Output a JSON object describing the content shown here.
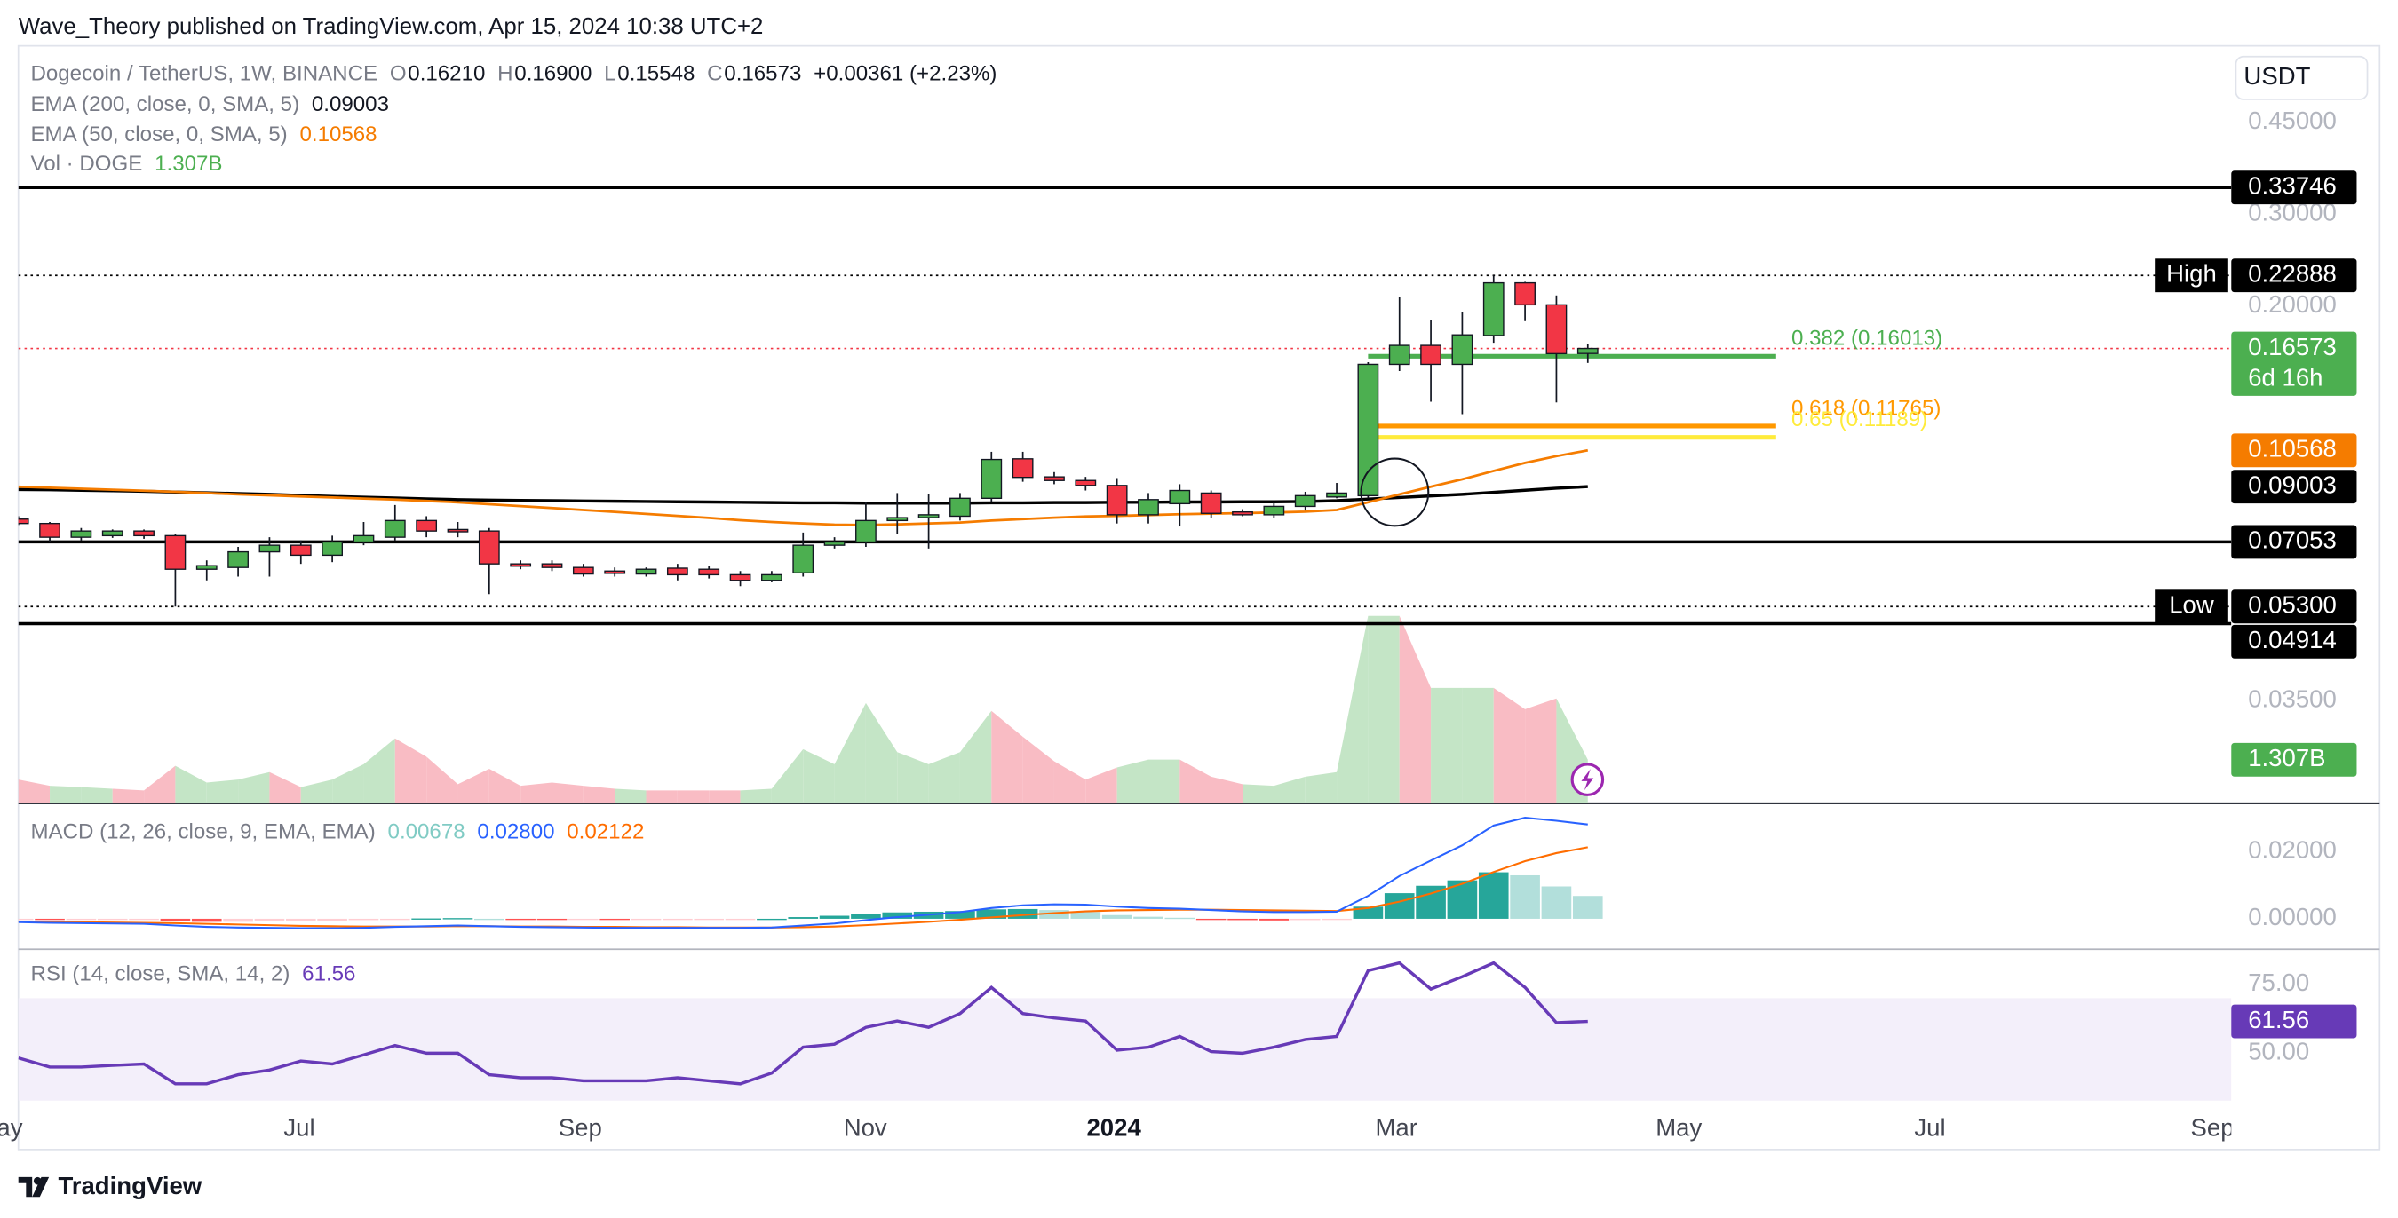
{
  "header": {
    "published": "Wave_Theory published on TradingView.com, Apr 15, 2024 10:38 UTC+2",
    "brand": "TradingView"
  },
  "chart_data": {
    "type": "candlestick",
    "title": "Dogecoin / TetherUS, 1W, BINANCE",
    "ohlc_legend": [
      {
        "key": "O",
        "value": "0.16210"
      },
      {
        "key": "H",
        "value": "0.16900"
      },
      {
        "key": "L",
        "value": "0.15548"
      },
      {
        "key": "C",
        "value": "0.16573"
      }
    ],
    "change": "+0.00361 (+2.23%)",
    "currency": "USDT",
    "categories": [
      null,
      null,
      null,
      null,
      null,
      null,
      null,
      null,
      null,
      null,
      null,
      null,
      null,
      null,
      null,
      null,
      null,
      null,
      null,
      null,
      null,
      null,
      null,
      null,
      null,
      null,
      null,
      null,
      null,
      null,
      null,
      null,
      null,
      null,
      null,
      null,
      null,
      null,
      null,
      null,
      null,
      null,
      null,
      null,
      null,
      null,
      null,
      null,
      null,
      null,
      null
    ],
    "open": [
      0.078,
      0.0765,
      0.072,
      0.0725,
      0.074,
      0.0725,
      0.0625,
      0.063,
      0.0675,
      0.0695,
      0.0665,
      0.0705,
      0.072,
      0.0775,
      0.0745,
      0.074,
      0.064,
      0.064,
      0.063,
      0.062,
      0.0612,
      0.0628,
      0.0625,
      0.061,
      0.0595,
      0.0615,
      0.0695,
      0.0705,
      0.0775,
      0.0785,
      0.079,
      0.0855,
      0.1018,
      0.094,
      0.0925,
      0.0905,
      0.0795,
      0.0835,
      0.0875,
      0.0805,
      0.0795,
      0.0825,
      0.086,
      0.0865,
      0.1545,
      0.168,
      0.1545,
      0.1755,
      0.2215,
      0.201,
      0.1621
    ],
    "high": [
      0.079,
      0.077,
      0.075,
      0.0745,
      0.0745,
      0.073,
      0.065,
      0.069,
      0.072,
      0.071,
      0.0725,
      0.077,
      0.083,
      0.079,
      0.077,
      0.075,
      0.065,
      0.065,
      0.064,
      0.063,
      0.063,
      0.064,
      0.0635,
      0.062,
      0.062,
      0.0735,
      0.072,
      0.084,
      0.0875,
      0.087,
      0.0875,
      0.105,
      0.105,
      0.096,
      0.094,
      0.0935,
      0.0875,
      0.091,
      0.0885,
      0.0815,
      0.084,
      0.088,
      0.0915,
      0.156,
      0.208,
      0.188,
      0.195,
      0.22888,
      0.2225,
      0.2095,
      0.169
    ],
    "low": [
      0.076,
      0.0705,
      0.071,
      0.0718,
      0.0715,
      0.053,
      0.0595,
      0.0605,
      0.0605,
      0.064,
      0.0645,
      0.0695,
      0.071,
      0.072,
      0.072,
      0.056,
      0.0625,
      0.062,
      0.0605,
      0.0605,
      0.0605,
      0.0595,
      0.06,
      0.058,
      0.059,
      0.0605,
      0.0685,
      0.069,
      0.073,
      0.0685,
      0.0775,
      0.084,
      0.092,
      0.091,
      0.0885,
      0.0765,
      0.0765,
      0.0755,
      0.0785,
      0.079,
      0.0785,
      0.081,
      0.0855,
      0.0855,
      0.15,
      0.131,
      0.124,
      0.17,
      0.187,
      0.1306,
      0.15548
    ],
    "close": [
      0.0765,
      0.072,
      0.074,
      0.074,
      0.0725,
      0.0625,
      0.0635,
      0.0675,
      0.0695,
      0.0665,
      0.0705,
      0.0725,
      0.0775,
      0.074,
      0.074,
      0.064,
      0.0635,
      0.063,
      0.0612,
      0.0615,
      0.0625,
      0.061,
      0.061,
      0.0595,
      0.061,
      0.0695,
      0.0705,
      0.0775,
      0.0785,
      0.0795,
      0.0855,
      0.1015,
      0.0938,
      0.0925,
      0.0905,
      0.0795,
      0.085,
      0.0885,
      0.08,
      0.0795,
      0.0825,
      0.0865,
      0.0875,
      0.1545,
      0.168,
      0.1545,
      0.176,
      0.2215,
      0.201,
      0.162,
      0.16573
    ],
    "up_color": "#4caf50",
    "down_color": "#f23645",
    "wick_color": "#131722",
    "log_scale": true,
    "grid": false,
    "ylim": [
      0.0223,
      0.631
    ],
    "yticks": [
      {
        "value": 0.45,
        "label": "0.45000"
      },
      {
        "value": 0.3,
        "label": "0.30000"
      },
      {
        "value": 0.2,
        "label": "0.20000"
      },
      {
        "value": 0.035,
        "label": "0.03500"
      }
    ],
    "xlim": [
      0,
      70.5
    ],
    "xticks": [
      {
        "value": -0.6,
        "label": "May"
      },
      {
        "value": 8.95,
        "label": "Jul"
      },
      {
        "value": 17.9,
        "label": "Sep"
      },
      {
        "value": 26.98,
        "label": "Nov"
      },
      {
        "value": 34.9,
        "label": "2024"
      },
      {
        "value": 43.9,
        "label": "Mar"
      },
      {
        "value": 52.9,
        "label": "May"
      },
      {
        "value": 60.9,
        "label": "Jul"
      },
      {
        "value": 69.9,
        "label": "Sep"
      }
    ],
    "overlays": [
      {
        "name": "EMA (200, close, 0, SMA, 5)",
        "legend_value": "0.09003",
        "color": "#000000",
        "legend_color": "#131722",
        "values": [
          0.0889,
          0.0888,
          0.0886,
          0.0884,
          0.0882,
          0.0879,
          0.0876,
          0.0873,
          0.087,
          0.0866,
          0.0862,
          0.0859,
          0.0856,
          0.0853,
          0.085,
          0.0848,
          0.0847,
          0.0846,
          0.0845,
          0.0844,
          0.0843,
          0.0842,
          0.0841,
          0.084,
          0.0839,
          0.0838,
          0.0838,
          0.0837,
          0.0837,
          0.0837,
          0.0837,
          0.0838,
          0.0838,
          0.0839,
          0.0839,
          0.084,
          0.084,
          0.0841,
          0.0841,
          0.0842,
          0.0842,
          0.0843,
          0.0846,
          0.0852,
          0.0858,
          0.0864,
          0.087,
          0.0878,
          0.0886,
          0.0894,
          0.09003
        ]
      },
      {
        "name": "EMA (50, close, 0, SMA, 5)",
        "legend_value": "0.10568",
        "color": "#f57c00",
        "legend_color": "#f57c00",
        "values": [
          0.09,
          0.0896,
          0.0892,
          0.0888,
          0.0884,
          0.088,
          0.0875,
          0.087,
          0.0866,
          0.0862,
          0.0858,
          0.0854,
          0.085,
          0.0845,
          0.084,
          0.0833,
          0.0826,
          0.0819,
          0.0812,
          0.0805,
          0.0798,
          0.0791,
          0.0784,
          0.0776,
          0.077,
          0.0765,
          0.0761,
          0.076,
          0.0762,
          0.0765,
          0.0768,
          0.0775,
          0.078,
          0.0785,
          0.0789,
          0.0791,
          0.0794,
          0.0797,
          0.0799,
          0.0801,
          0.0803,
          0.0806,
          0.0812,
          0.084,
          0.087,
          0.09,
          0.093,
          0.0965,
          0.1,
          0.103,
          0.10568
        ]
      }
    ],
    "levels": [
      {
        "value": 0.33746,
        "label": "0.33746",
        "line": "solid",
        "color": "#000000"
      },
      {
        "value": 0.22888,
        "label": "0.22888",
        "tag": "High",
        "line": "dotted",
        "color": "#000000"
      },
      {
        "value": 0.16573,
        "label": "0.16573",
        "countdown": "6d 16h",
        "line": "dotted",
        "line_color": "#f23645",
        "color": "#4caf50"
      },
      {
        "value": 0.10568,
        "label": "0.10568",
        "line": "none",
        "color": "#f57c00"
      },
      {
        "value": 0.09003,
        "label": "0.09003",
        "line": "none",
        "color": "#000000"
      },
      {
        "value": 0.07053,
        "label": "0.07053",
        "line": "solid",
        "color": "#000000"
      },
      {
        "value": 0.053,
        "label": "0.05300",
        "tag": "Low",
        "line": "dotted",
        "color": "#000000"
      },
      {
        "value": 0.04914,
        "label": "0.04914",
        "line": "solid",
        "color": "#000000"
      }
    ],
    "fib_levels": [
      {
        "value": 0.16013,
        "label": "0.382 (0.16013)",
        "color": "#4caf50",
        "x_range": [
          43,
          56
        ]
      },
      {
        "value": 0.11765,
        "label": "0.618 (0.11765)",
        "color": "#ff9800",
        "x_range": [
          43.3,
          56
        ]
      },
      {
        "value": 0.11189,
        "label": "0.65 (0.11189)",
        "color": "#ffeb3b",
        "x_range": [
          43.3,
          56
        ]
      }
    ],
    "volume": {
      "name": "Vol · DOGE",
      "legend_value": "1.307B",
      "legend_color": "#4caf50",
      "values": [
        0.7,
        0.51,
        0.47,
        0.42,
        0.37,
        1.12,
        0.61,
        0.7,
        0.93,
        0.47,
        0.7,
        1.17,
        1.96,
        1.4,
        0.56,
        1.03,
        0.51,
        0.61,
        0.51,
        0.42,
        0.37,
        0.37,
        0.37,
        0.37,
        0.42,
        1.63,
        1.17,
        3.04,
        1.54,
        1.17,
        1.54,
        2.8,
        2.01,
        1.26,
        0.7,
        1.07,
        1.31,
        1.31,
        0.79,
        0.56,
        0.51,
        0.79,
        0.93,
        5.7,
        5.7,
        3.5,
        3.5,
        3.5,
        2.85,
        3.18,
        1.307
      ],
      "ylim": [
        0,
        17.6
      ],
      "up_color": "#c4e5c6",
      "down_color": "#f9bcc4",
      "last_box": {
        "value": 1.307,
        "label": "1.307B",
        "color": "#4caf50"
      }
    },
    "macd": {
      "name": "MACD (12, 26, close, 9, EMA, EMA)",
      "legend_values": [
        {
          "label": "0.00678",
          "color": "#80cbc4"
        },
        {
          "label": "0.02800",
          "color": "#2962ff"
        },
        {
          "label": "0.02122",
          "color": "#ff6d00"
        }
      ],
      "macd": [
        -0.001,
        -0.0012,
        -0.0013,
        -0.0014,
        -0.0015,
        -0.002,
        -0.0024,
        -0.0026,
        -0.0027,
        -0.0028,
        -0.0028,
        -0.0027,
        -0.0024,
        -0.0022,
        -0.002,
        -0.0022,
        -0.0024,
        -0.0025,
        -0.0026,
        -0.0027,
        -0.0027,
        -0.0027,
        -0.0027,
        -0.0027,
        -0.0026,
        -0.002,
        -0.0014,
        -0.0004,
        0.0005,
        0.0012,
        0.002,
        0.0032,
        0.004,
        0.0043,
        0.0042,
        0.0036,
        0.0032,
        0.003,
        0.0026,
        0.0022,
        0.002,
        0.002,
        0.0021,
        0.0068,
        0.0127,
        0.0173,
        0.0218,
        0.0277,
        0.03,
        0.0291,
        0.028
      ],
      "signal": [
        -0.0008,
        -0.0009,
        -0.001,
        -0.0011,
        -0.0012,
        -0.0013,
        -0.0015,
        -0.0017,
        -0.0019,
        -0.0021,
        -0.0022,
        -0.0023,
        -0.0023,
        -0.0023,
        -0.0022,
        -0.0022,
        -0.0023,
        -0.0023,
        -0.0024,
        -0.0024,
        -0.0025,
        -0.0025,
        -0.0026,
        -0.0026,
        -0.0026,
        -0.0025,
        -0.0023,
        -0.0019,
        -0.0014,
        -0.0009,
        -0.0003,
        0.0004,
        0.0011,
        0.0017,
        0.0022,
        0.0025,
        0.0026,
        0.0027,
        0.0027,
        0.0026,
        0.0025,
        0.0024,
        0.0023,
        0.0032,
        0.0051,
        0.0075,
        0.0104,
        0.0139,
        0.0171,
        0.0195,
        0.02122
      ],
      "histogram": [
        -0.0002,
        -0.0003,
        -0.0003,
        -0.0003,
        -0.0003,
        -0.0007,
        -0.0009,
        -0.0009,
        -0.0008,
        -0.0007,
        -0.0006,
        -0.0004,
        -0.0001,
        0.0001,
        0.0002,
        0,
        -0.0001,
        -0.0002,
        -0.0002,
        -0.0003,
        -0.0002,
        -0.0002,
        -0.0001,
        -0.0001,
        0,
        0.0005,
        0.0009,
        0.0015,
        0.0019,
        0.0021,
        0.0023,
        0.0028,
        0.0029,
        0.0026,
        0.002,
        0.0011,
        0.0006,
        0.0003,
        -0.0001,
        -0.0004,
        -0.0005,
        -0.0004,
        -0.0002,
        0.0036,
        0.0076,
        0.0098,
        0.0114,
        0.0138,
        0.0129,
        0.0096,
        0.00678
      ],
      "macd_color": "#2962ff",
      "signal_color": "#ff6d00",
      "histogram_colors": [
        "#26a69a",
        "#b2dfdb",
        "#ffcdd2",
        "#ff5252"
      ],
      "ylim": [
        -0.0086,
        0.0336
      ],
      "yticks": [
        {
          "value": 0,
          "label": "0.00000"
        },
        {
          "value": 0.02,
          "label": "0.02000"
        }
      ]
    },
    "rsi": {
      "name": "RSI (14, close, SMA, 14, 2)",
      "legend_value": "61.56",
      "color": "#673ab7",
      "values": [
        48.3,
        45.0,
        45.0,
        45.6,
        46.1,
        38.9,
        38.9,
        42.2,
        43.9,
        47.2,
        46.1,
        49.4,
        52.8,
        50.0,
        50.0,
        42.2,
        41.1,
        41.1,
        40.0,
        40.0,
        40.0,
        41.1,
        40.0,
        38.9,
        42.8,
        52.2,
        53.3,
        59.4,
        61.7,
        59.4,
        64.4,
        73.9,
        64.4,
        62.8,
        61.7,
        51.1,
        52.2,
        56.1,
        50.6,
        50.0,
        52.2,
        55.0,
        56.1,
        80.0,
        82.8,
        73.3,
        77.8,
        82.8,
        73.9,
        61.1,
        61.56
      ],
      "ylim": [
        32.8,
        87.2
      ],
      "yticks": [
        {
          "value": 75,
          "label": "75.00"
        },
        {
          "value": 50,
          "label": "50.00"
        }
      ],
      "band": [
        30,
        70
      ],
      "band_color": "#f3effa",
      "last_box": {
        "value": 61.56,
        "label": "61.56",
        "color": "#673ab7"
      }
    }
  }
}
